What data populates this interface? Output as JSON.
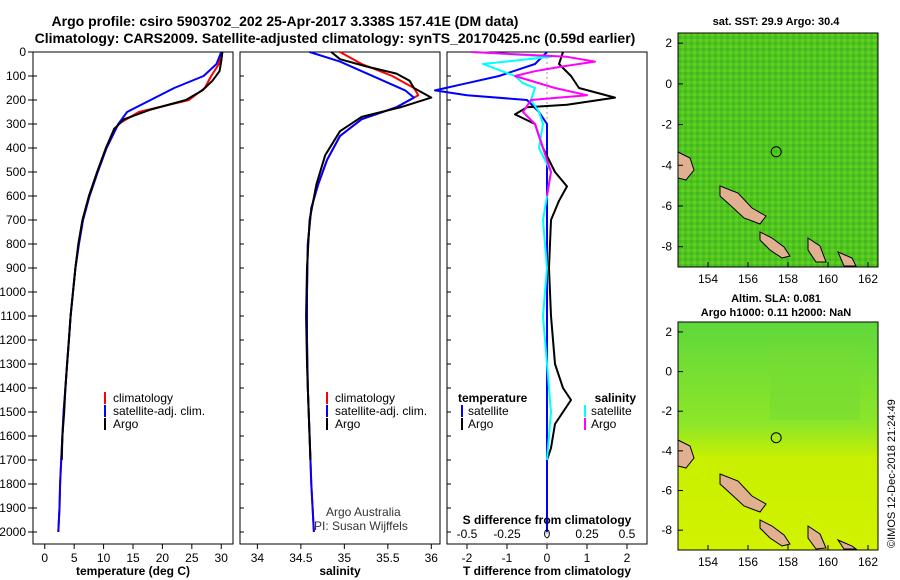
{
  "header": {
    "title_line1": "Argo profile: csiro 5903702_202 25-Apr-2017 3.338S 157.41E (DM data)",
    "title_line2": "Climatology: CARS2009. Satellite-adjusted climatology: synTS_20170425.nc (0.59d earlier)"
  },
  "colors": {
    "climatology": "#ff0000",
    "satellite_adj": "#0000ff",
    "argo": "#000000",
    "argo_salinity_diff": "#ff00ff",
    "satellite_salinity_diff": "#00ffff"
  },
  "depth_ticks": [
    0,
    100,
    200,
    300,
    400,
    500,
    600,
    700,
    800,
    900,
    1000,
    1100,
    1200,
    1300,
    1400,
    1500,
    1600,
    1700,
    1800,
    1900,
    2000
  ],
  "chart_data": [
    {
      "type": "line",
      "xlabel": "temperature (deg C)",
      "xlim": [
        -2,
        32
      ],
      "xticks": [
        0,
        5,
        10,
        15,
        20,
        25,
        30
      ],
      "ylim": [
        0,
        2050
      ],
      "y_inverted": true,
      "legend": [
        "climatology",
        "satellite-adj. clim.",
        "Argo"
      ],
      "series": [
        {
          "name": "climatology",
          "color": "#ff0000",
          "points": [
            [
              30.0,
              0
            ],
            [
              29.6,
              50
            ],
            [
              28.3,
              100
            ],
            [
              27.2,
              150
            ],
            [
              24.5,
              200
            ],
            [
              16.0,
              250
            ],
            [
              12.5,
              300
            ],
            [
              10.5,
              400
            ],
            [
              9.0,
              500
            ],
            [
              7.6,
              600
            ],
            [
              6.5,
              700
            ],
            [
              5.8,
              800
            ],
            [
              5.2,
              900
            ],
            [
              4.8,
              1000
            ],
            [
              4.4,
              1100
            ],
            [
              4.1,
              1200
            ],
            [
              3.8,
              1300
            ],
            [
              3.5,
              1400
            ],
            [
              3.2,
              1500
            ],
            [
              3.0,
              1600
            ],
            [
              2.8,
              1700
            ],
            [
              2.6,
              1800
            ],
            [
              2.5,
              1900
            ],
            [
              2.3,
              2000
            ]
          ]
        },
        {
          "name": "satellite-adj. clim.",
          "color": "#0000ff",
          "points": [
            [
              30.0,
              0
            ],
            [
              29.2,
              50
            ],
            [
              27.0,
              100
            ],
            [
              22.0,
              150
            ],
            [
              18.0,
              200
            ],
            [
              14.0,
              250
            ],
            [
              12.5,
              300
            ],
            [
              10.5,
              400
            ],
            [
              9.0,
              500
            ],
            [
              7.6,
              600
            ],
            [
              6.5,
              700
            ],
            [
              5.8,
              800
            ],
            [
              5.2,
              900
            ],
            [
              4.8,
              1000
            ],
            [
              4.4,
              1100
            ],
            [
              4.1,
              1200
            ],
            [
              3.8,
              1300
            ],
            [
              3.5,
              1400
            ],
            [
              3.2,
              1500
            ],
            [
              3.0,
              1600
            ],
            [
              2.8,
              1700
            ],
            [
              2.6,
              1800
            ],
            [
              2.5,
              1900
            ],
            [
              2.3,
              2000
            ]
          ]
        },
        {
          "name": "Argo",
          "color": "#000000",
          "points": [
            [
              30.2,
              0
            ],
            [
              30.0,
              40
            ],
            [
              29.7,
              80
            ],
            [
              28.5,
              120
            ],
            [
              26.8,
              160
            ],
            [
              24.0,
              200
            ],
            [
              18.0,
              240
            ],
            [
              13.5,
              280
            ],
            [
              11.8,
              320
            ],
            [
              10.4,
              400
            ],
            [
              8.9,
              500
            ],
            [
              7.5,
              600
            ],
            [
              6.4,
              700
            ],
            [
              5.7,
              800
            ],
            [
              5.2,
              900
            ],
            [
              4.8,
              1000
            ],
            [
              4.4,
              1100
            ],
            [
              4.1,
              1200
            ],
            [
              3.8,
              1300
            ],
            [
              3.5,
              1400
            ],
            [
              3.3,
              1500
            ],
            [
              3.0,
              1600
            ],
            [
              2.9,
              1700
            ]
          ]
        }
      ]
    },
    {
      "type": "line",
      "xlabel": "salinity",
      "xlim": [
        33.8,
        36.1
      ],
      "xticks": [
        34,
        34.5,
        35,
        35.5,
        36
      ],
      "xtick_labels": [
        "34",
        "34.5",
        "35",
        "35.5",
        "36"
      ],
      "ylim": [
        0,
        2050
      ],
      "y_inverted": true,
      "legend": [
        "climatology",
        "satellite-adj. clim.",
        "Argo"
      ],
      "annotation": [
        "Argo Australia",
        "PI: Susan Wijffels"
      ],
      "series": [
        {
          "name": "climatology",
          "color": "#ff0000",
          "points": [
            [
              34.95,
              0
            ],
            [
              35.2,
              50
            ],
            [
              35.55,
              100
            ],
            [
              35.8,
              150
            ],
            [
              35.85,
              180
            ],
            [
              35.6,
              230
            ],
            [
              35.2,
              280
            ],
            [
              34.95,
              350
            ],
            [
              34.8,
              450
            ],
            [
              34.7,
              550
            ],
            [
              34.62,
              650
            ],
            [
              34.58,
              800
            ],
            [
              34.57,
              1000
            ],
            [
              34.57,
              1200
            ],
            [
              34.58,
              1400
            ],
            [
              34.6,
              1600
            ],
            [
              34.62,
              1800
            ],
            [
              34.65,
              2000
            ]
          ]
        },
        {
          "name": "satellite-adj. clim.",
          "color": "#0000ff",
          "points": [
            [
              34.6,
              0
            ],
            [
              34.95,
              40
            ],
            [
              35.2,
              80
            ],
            [
              35.45,
              120
            ],
            [
              35.7,
              160
            ],
            [
              35.8,
              190
            ],
            [
              35.6,
              230
            ],
            [
              35.2,
              280
            ],
            [
              34.95,
              350
            ],
            [
              34.8,
              450
            ],
            [
              34.7,
              550
            ],
            [
              34.62,
              650
            ],
            [
              34.58,
              800
            ],
            [
              34.57,
              1000
            ],
            [
              34.57,
              1200
            ],
            [
              34.58,
              1400
            ],
            [
              34.6,
              1600
            ],
            [
              34.62,
              1800
            ],
            [
              34.65,
              2000
            ]
          ]
        },
        {
          "name": "Argo",
          "color": "#000000",
          "points": [
            [
              34.85,
              0
            ],
            [
              34.95,
              30
            ],
            [
              35.25,
              60
            ],
            [
              35.6,
              90
            ],
            [
              35.75,
              120
            ],
            [
              35.8,
              150
            ],
            [
              36.0,
              190
            ],
            [
              35.65,
              230
            ],
            [
              35.2,
              270
            ],
            [
              34.95,
              330
            ],
            [
              34.78,
              430
            ],
            [
              34.68,
              550
            ],
            [
              34.6,
              700
            ],
            [
              34.57,
              900
            ],
            [
              34.56,
              1100
            ],
            [
              34.57,
              1300
            ],
            [
              34.59,
              1500
            ],
            [
              34.61,
              1700
            ]
          ]
        }
      ]
    },
    {
      "type": "line",
      "xlabel": "T difference from climatology",
      "xlabel_top": "S difference from climatology",
      "xlim": [
        -2.5,
        2.5
      ],
      "xticks": [
        -2,
        -1,
        0,
        1,
        2
      ],
      "xtick_labels": [
        "-2",
        "-1",
        "0",
        "1",
        "2"
      ],
      "xticks_top": [
        -0.5,
        -0.25,
        0,
        0.25,
        0.5
      ],
      "xtick_labels_top": [
        "-0.5",
        "-0.25",
        "0",
        "0.25",
        "0.5"
      ],
      "ylim": [
        0,
        2050
      ],
      "y_inverted": true,
      "legend_groups": [
        {
          "heading": "temperature",
          "entries": [
            "satellite",
            "Argo"
          ]
        },
        {
          "heading": "salinity",
          "entries": [
            "satellite",
            "Argo"
          ]
        }
      ],
      "series": [
        {
          "name": "temperature satellite",
          "color": "#0000ff",
          "points": [
            [
              0,
              0
            ],
            [
              -0.3,
              50
            ],
            [
              -1.2,
              100
            ],
            [
              -2.0,
              130
            ],
            [
              -2.8,
              160
            ],
            [
              -2.0,
              180
            ],
            [
              -0.5,
              200
            ],
            [
              -0.2,
              250
            ],
            [
              0,
              300
            ],
            [
              0,
              2000
            ]
          ]
        },
        {
          "name": "temperature Argo",
          "color": "#000000",
          "points": [
            [
              0.4,
              0
            ],
            [
              0.3,
              50
            ],
            [
              0.6,
              100
            ],
            [
              0.8,
              150
            ],
            [
              1.7,
              190
            ],
            [
              0.5,
              220
            ],
            [
              -0.5,
              230
            ],
            [
              -0.8,
              260
            ],
            [
              -0.3,
              300
            ],
            [
              -0.1,
              400
            ],
            [
              0.2,
              500
            ],
            [
              0.5,
              560
            ],
            [
              0.3,
              620
            ],
            [
              0.1,
              700
            ],
            [
              0.05,
              900
            ],
            [
              0.1,
              1100
            ],
            [
              0.2,
              1300
            ],
            [
              0.4,
              1400
            ],
            [
              0.6,
              1450
            ],
            [
              0.2,
              1550
            ],
            [
              0.1,
              1650
            ],
            [
              0.0,
              1700
            ]
          ]
        },
        {
          "name": "salinity satellite",
          "color": "#00ffff",
          "points": [
            [
              -1.8,
              0
            ],
            [
              0.1,
              20
            ],
            [
              -1.6,
              50
            ],
            [
              -0.8,
              100
            ],
            [
              -0.6,
              130
            ],
            [
              -0.3,
              150
            ],
            [
              -0.4,
              200
            ],
            [
              -0.2,
              250
            ],
            [
              -0.1,
              300
            ],
            [
              -0.2,
              400
            ],
            [
              0.1,
              500
            ],
            [
              0,
              600
            ],
            [
              -0.1,
              700
            ],
            [
              0,
              900
            ],
            [
              -0.1,
              1100
            ],
            [
              0,
              1300
            ],
            [
              0.1,
              1500
            ],
            [
              0,
              1700
            ]
          ]
        },
        {
          "name": "salinity Argo",
          "color": "#ff00ff",
          "points": [
            [
              -1.9,
              0
            ],
            [
              0.5,
              20
            ],
            [
              1.2,
              40
            ],
            [
              0.4,
              60
            ],
            [
              -0.3,
              80
            ],
            [
              -0.8,
              100
            ],
            [
              0.2,
              150
            ],
            [
              1.0,
              180
            ],
            [
              -0.4,
              200
            ],
            [
              -0.6,
              250
            ],
            [
              -0.3,
              300
            ],
            [
              -0.1,
              400
            ],
            [
              0.1,
              500
            ],
            [
              0,
              600
            ]
          ]
        }
      ]
    },
    {
      "type": "heatmap",
      "title": "sat. SST: 29.9 Argo: 30.4",
      "xlim": [
        152.5,
        162.5
      ],
      "ylim": [
        -9,
        2.5
      ],
      "xticks": [
        154,
        156,
        158,
        160,
        162
      ],
      "yticks": [
        2,
        0,
        -2,
        -4,
        -6,
        -8
      ],
      "marker": {
        "lon": 157.41,
        "lat": -3.338
      }
    },
    {
      "type": "heatmap",
      "title": "Altim. SLA: 0.081",
      "subtitle": "Argo h1000: 0.11 h2000: NaN",
      "xlim": [
        152.5,
        162.5
      ],
      "ylim": [
        -9,
        2.5
      ],
      "xticks": [
        154,
        156,
        158,
        160,
        162
      ],
      "yticks": [
        2,
        0,
        -2,
        -4,
        -6,
        -8
      ],
      "marker": {
        "lon": 157.41,
        "lat": -3.338
      }
    }
  ],
  "footer": {
    "credit": "©IMOS 12-Dec-2018 21:24:49"
  }
}
